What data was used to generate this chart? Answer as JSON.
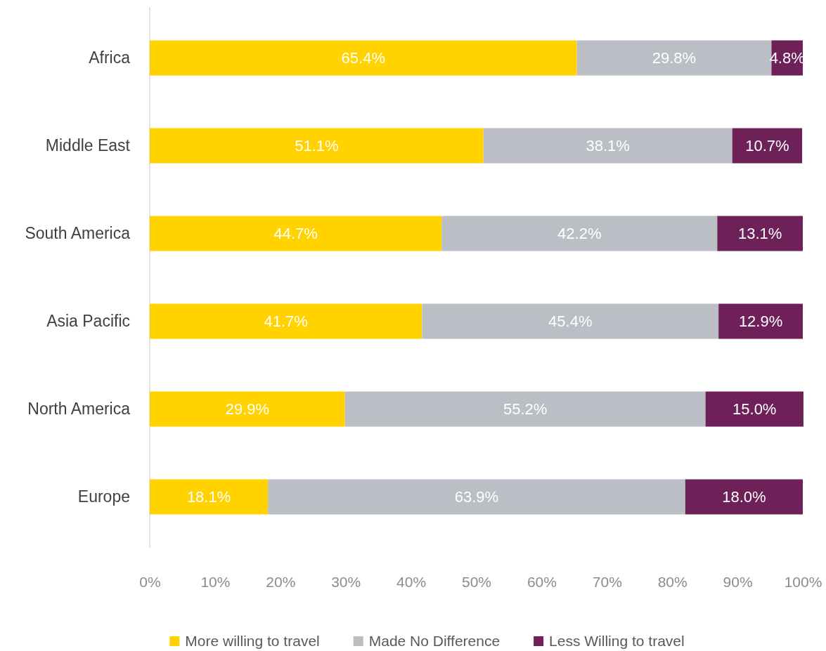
{
  "chart_data": {
    "type": "bar",
    "orientation": "horizontal",
    "stacked": true,
    "categories": [
      "Africa",
      "Middle East",
      "South America",
      "Asia Pacific",
      "North America",
      "Europe"
    ],
    "series": [
      {
        "name": "More willing to travel",
        "color": "#ffd200",
        "values": [
          65.4,
          51.1,
          44.7,
          41.7,
          29.9,
          18.1
        ],
        "value_labels": [
          "65.4%",
          "51.1%",
          "44.7%",
          "41.7%",
          "29.9%",
          "18.1%"
        ]
      },
      {
        "name": "Made No Difference",
        "color": "#bcbec6",
        "values": [
          29.8,
          38.1,
          42.2,
          45.4,
          55.2,
          63.9
        ],
        "value_labels": [
          "29.8%",
          "38.1%",
          "42.2%",
          "45.4%",
          "55.2%",
          "63.9%"
        ]
      },
      {
        "name": "Less Willing to travel",
        "color": "#6d2158",
        "values": [
          4.8,
          10.7,
          13.1,
          12.9,
          15.0,
          18.0
        ],
        "value_labels": [
          "4.8%",
          "10.7%",
          "13.1%",
          "12.9%",
          "15.0%",
          "18.0%"
        ]
      }
    ],
    "xlim": [
      0,
      100
    ],
    "xticks": [
      {
        "value": 0,
        "label": "0%"
      },
      {
        "value": 10,
        "label": "10%"
      },
      {
        "value": 20,
        "label": "20%"
      },
      {
        "value": 30,
        "label": "30%"
      },
      {
        "value": 40,
        "label": "40%"
      },
      {
        "value": 50,
        "label": "50%"
      },
      {
        "value": 60,
        "label": "60%"
      },
      {
        "value": 70,
        "label": "70%"
      },
      {
        "value": 80,
        "label": "80%"
      },
      {
        "value": 90,
        "label": "90%"
      },
      {
        "value": 100,
        "label": "100%"
      }
    ],
    "grid": false,
    "legend": "bottom"
  }
}
